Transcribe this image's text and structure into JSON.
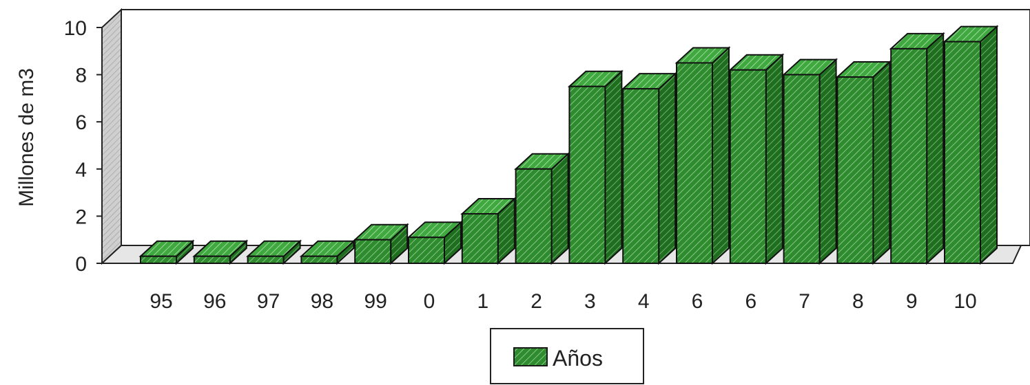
{
  "chart_data": {
    "type": "bar",
    "title": "",
    "xlabel": "",
    "ylabel": "Millones de m3",
    "categories": [
      "95",
      "96",
      "97",
      "98",
      "99",
      "0",
      "1",
      "2",
      "3",
      "4",
      "6",
      "6",
      "7",
      "8",
      "9",
      "10"
    ],
    "series": [
      {
        "name": "Años",
        "values": [
          0.3,
          0.3,
          0.3,
          0.3,
          1.0,
          1.1,
          2.1,
          4.0,
          7.5,
          7.4,
          8.5,
          8.2,
          8.0,
          7.9,
          9.1,
          9.4
        ]
      }
    ],
    "yticks": [
      "0",
      "2",
      "4",
      "6",
      "8",
      "10"
    ],
    "ylim": [
      0,
      10
    ],
    "grid": false,
    "legend_position": "bottom",
    "colors": {
      "bar_front": "#2e8b2e",
      "bar_top": "#3fa83f",
      "bar_side": "#1f6e1f",
      "hatch": "#9fd69f",
      "wall": "#c8c8c8",
      "floor": "#e4e4e4"
    }
  }
}
